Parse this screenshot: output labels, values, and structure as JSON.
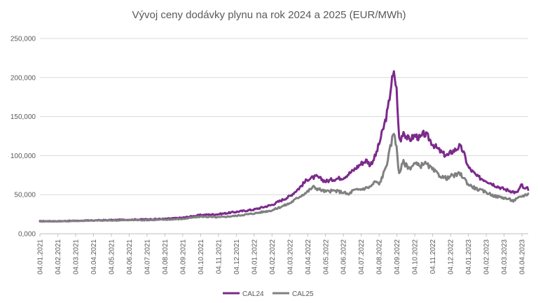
{
  "chart_data": {
    "type": "line",
    "title": "Vývoj ceny dodávky plynu na rok 2024 a 2025 (EUR/MWh)",
    "xlabel": "",
    "ylabel": "",
    "ylim": [
      0,
      250
    ],
    "yticks": [
      0,
      50,
      100,
      150,
      200,
      250
    ],
    "ytick_labels": [
      "0,000",
      "50,000",
      "100,000",
      "150,000",
      "200,000",
      "250,000"
    ],
    "x_range_months": [
      0,
      27.35
    ],
    "x_categories": [
      "04.01.2021",
      "04.02.2021",
      "04.03.2021",
      "04.04.2021",
      "04.05.2021",
      "04.06.2021",
      "04.07.2021",
      "04.08.2021",
      "04.09.2021",
      "04.10.2021",
      "04.11.2021",
      "04.12.2021",
      "04.01.2022",
      "04.02.2022",
      "04.03.2022",
      "04.04.2022",
      "04.05.2022",
      "04.06.2022",
      "04.07.2022",
      "04.08.2022",
      "04.09.2022",
      "04.10.2022",
      "04.11.2022",
      "04.12.2022",
      "04.01.2023",
      "04.02.2023",
      "04.03.2023",
      "04.04.2023"
    ],
    "grid": true,
    "legend_position": "bottom",
    "series": [
      {
        "name": "CAL24",
        "color": "#7b2a8b",
        "points": [
          [
            0,
            16
          ],
          [
            1,
            16
          ],
          [
            2,
            16.5
          ],
          [
            3,
            17
          ],
          [
            4,
            17.5
          ],
          [
            5,
            18
          ],
          [
            6,
            18.5
          ],
          [
            7,
            19
          ],
          [
            8,
            20.5
          ],
          [
            9,
            24
          ],
          [
            10,
            25
          ],
          [
            11,
            28
          ],
          [
            12,
            31
          ],
          [
            13,
            37
          ],
          [
            14,
            48
          ],
          [
            14.5,
            58
          ],
          [
            15,
            70
          ],
          [
            15.5,
            73
          ],
          [
            16,
            67
          ],
          [
            16.5,
            70
          ],
          [
            17,
            72
          ],
          [
            17.5,
            80
          ],
          [
            18,
            90
          ],
          [
            18.3,
            94
          ],
          [
            18.5,
            88
          ],
          [
            18.8,
            100
          ],
          [
            19,
            115
          ],
          [
            19.3,
            140
          ],
          [
            19.5,
            160
          ],
          [
            19.7,
            195
          ],
          [
            19.85,
            205
          ],
          [
            20,
            180
          ],
          [
            20.1,
            125
          ],
          [
            20.2,
            118
          ],
          [
            20.35,
            132
          ],
          [
            20.5,
            125
          ],
          [
            20.7,
            120
          ],
          [
            21,
            126
          ],
          [
            21.3,
            122
          ],
          [
            21.5,
            128
          ],
          [
            21.7,
            125
          ],
          [
            22,
            115
          ],
          [
            22.3,
            108
          ],
          [
            22.6,
            102
          ],
          [
            22.9,
            100
          ],
          [
            23,
            104
          ],
          [
            23.3,
            108
          ],
          [
            23.5,
            112
          ],
          [
            23.7,
            106
          ],
          [
            24,
            85
          ],
          [
            24.5,
            73
          ],
          [
            25,
            68
          ],
          [
            25.5,
            62
          ],
          [
            26,
            57
          ],
          [
            26.5,
            54
          ],
          [
            26.7,
            52
          ],
          [
            27,
            63
          ],
          [
            27.1,
            57
          ],
          [
            27.35,
            58
          ]
        ]
      },
      {
        "name": "CAL25",
        "color": "#808080",
        "points": [
          [
            0,
            16
          ],
          [
            1,
            16
          ],
          [
            2,
            16.5
          ],
          [
            3,
            17
          ],
          [
            4,
            17
          ],
          [
            5,
            17.5
          ],
          [
            6,
            17.5
          ],
          [
            7,
            18
          ],
          [
            8,
            19
          ],
          [
            9,
            22
          ],
          [
            10,
            21
          ],
          [
            11,
            23
          ],
          [
            12,
            26
          ],
          [
            13,
            30
          ],
          [
            14,
            39
          ],
          [
            14.5,
            47
          ],
          [
            15,
            54
          ],
          [
            15.3,
            60
          ],
          [
            15.5,
            58
          ],
          [
            16,
            54
          ],
          [
            16.5,
            55
          ],
          [
            17,
            53
          ],
          [
            17.3,
            50
          ],
          [
            17.5,
            55
          ],
          [
            18,
            57
          ],
          [
            18.5,
            60
          ],
          [
            18.8,
            67
          ],
          [
            19,
            63
          ],
          [
            19.3,
            80
          ],
          [
            19.5,
            96
          ],
          [
            19.7,
            118
          ],
          [
            19.85,
            132
          ],
          [
            20,
            105
          ],
          [
            20.1,
            78
          ],
          [
            20.2,
            82
          ],
          [
            20.35,
            92
          ],
          [
            20.5,
            88
          ],
          [
            20.7,
            84
          ],
          [
            21,
            90
          ],
          [
            21.3,
            86
          ],
          [
            21.5,
            91
          ],
          [
            21.7,
            88
          ],
          [
            22,
            82
          ],
          [
            22.3,
            76
          ],
          [
            22.6,
            72
          ],
          [
            22.9,
            71
          ],
          [
            23,
            74
          ],
          [
            23.3,
            75
          ],
          [
            23.5,
            77
          ],
          [
            23.7,
            73
          ],
          [
            24,
            63
          ],
          [
            24.5,
            57
          ],
          [
            25,
            53
          ],
          [
            25.5,
            48
          ],
          [
            26,
            46
          ],
          [
            26.3,
            44
          ],
          [
            26.5,
            42
          ],
          [
            27,
            48
          ],
          [
            27.35,
            51
          ]
        ]
      }
    ]
  }
}
